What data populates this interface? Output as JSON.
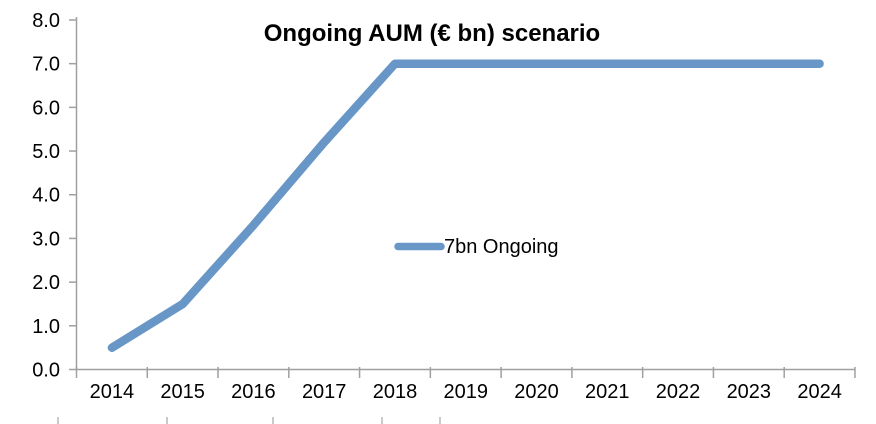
{
  "chart_data": {
    "type": "line",
    "title": "Ongoing AUM (€ bn) scenario",
    "categories": [
      "2014",
      "2015",
      "2016",
      "2017",
      "2018",
      "2019",
      "2020",
      "2021",
      "2022",
      "2023",
      "2024"
    ],
    "series": [
      {
        "name": "7bn Ongoing",
        "values": [
          0.5,
          1.5,
          3.3,
          5.2,
          7.0,
          7.0,
          7.0,
          7.0,
          7.0,
          7.0,
          7.0
        ]
      }
    ],
    "xlabel": "",
    "ylabel": "",
    "ylim": [
      0,
      8
    ],
    "ytick_step": 1.0,
    "ytick_labels": [
      "0.0",
      "1.0",
      "2.0",
      "3.0",
      "4.0",
      "5.0",
      "6.0",
      "7.0",
      "8.0"
    ],
    "grid": false,
    "legend": {
      "label": "7bn Ongoing",
      "position": "center-of-plot"
    },
    "colors": {
      "line": "#6897c7",
      "axis": "#a0a0a0",
      "text": "#000000",
      "crop_ticks": "#c9c9c9"
    },
    "bottom_crop_tick_xs": [
      58,
      167,
      273,
      382,
      440
    ]
  }
}
